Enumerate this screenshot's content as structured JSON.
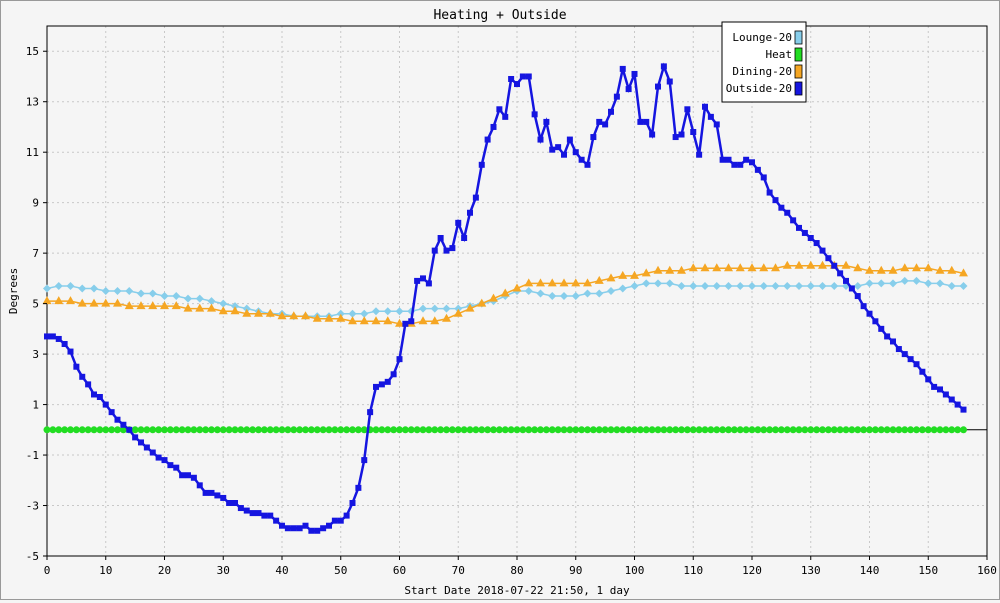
{
  "chart_data": {
    "type": "line",
    "title": "Heating + Outside",
    "xlabel": "Start Date 2018-07-22 21:50, 1 day",
    "ylabel": "Degrees",
    "xlim": [
      0,
      160
    ],
    "ylim": [
      -5,
      16
    ],
    "x_ticks": [
      0,
      10,
      20,
      30,
      40,
      50,
      60,
      70,
      80,
      90,
      100,
      110,
      120,
      130,
      140,
      150,
      160
    ],
    "y_ticks": [
      -5,
      -3,
      -1,
      1,
      3,
      5,
      7,
      9,
      11,
      13,
      15
    ],
    "grid": true,
    "legend_position": "top-right",
    "series": [
      {
        "name": "Lounge-20",
        "color": "#87ceeb",
        "marker": "diamond",
        "x": [
          0,
          2,
          4,
          6,
          8,
          10,
          12,
          14,
          16,
          18,
          20,
          22,
          24,
          26,
          28,
          30,
          32,
          34,
          36,
          38,
          40,
          42,
          44,
          46,
          48,
          50,
          52,
          54,
          56,
          58,
          60,
          62,
          64,
          66,
          68,
          70,
          72,
          74,
          76,
          78,
          80,
          82,
          84,
          86,
          88,
          90,
          92,
          94,
          96,
          98,
          100,
          102,
          104,
          106,
          108,
          110,
          112,
          114,
          116,
          118,
          120,
          122,
          124,
          126,
          128,
          130,
          132,
          134,
          136,
          138,
          140,
          142,
          144,
          146,
          148,
          150,
          152,
          154,
          156
        ],
        "values": [
          5.6,
          5.7,
          5.7,
          5.6,
          5.6,
          5.5,
          5.5,
          5.5,
          5.4,
          5.4,
          5.3,
          5.3,
          5.2,
          5.2,
          5.1,
          5.0,
          4.9,
          4.8,
          4.7,
          4.6,
          4.6,
          4.5,
          4.5,
          4.5,
          4.5,
          4.6,
          4.6,
          4.6,
          4.7,
          4.7,
          4.7,
          4.7,
          4.8,
          4.8,
          4.8,
          4.8,
          4.9,
          5.0,
          5.1,
          5.3,
          5.5,
          5.5,
          5.4,
          5.3,
          5.3,
          5.3,
          5.4,
          5.4,
          5.5,
          5.6,
          5.7,
          5.8,
          5.8,
          5.8,
          5.7,
          5.7,
          5.7,
          5.7,
          5.7,
          5.7,
          5.7,
          5.7,
          5.7,
          5.7,
          5.7,
          5.7,
          5.7,
          5.7,
          5.7,
          5.7,
          5.8,
          5.8,
          5.8,
          5.9,
          5.9,
          5.8,
          5.8,
          5.7,
          5.7
        ]
      },
      {
        "name": "Heat",
        "color": "#22dd22",
        "marker": "circle",
        "x": [
          0,
          156
        ],
        "values": [
          0,
          0
        ]
      },
      {
        "name": "Dining-20",
        "color": "#f5a623",
        "marker": "triangle",
        "x": [
          0,
          2,
          4,
          6,
          8,
          10,
          12,
          14,
          16,
          18,
          20,
          22,
          24,
          26,
          28,
          30,
          32,
          34,
          36,
          38,
          40,
          42,
          44,
          46,
          48,
          50,
          52,
          54,
          56,
          58,
          60,
          62,
          64,
          66,
          68,
          70,
          72,
          74,
          76,
          78,
          80,
          82,
          84,
          86,
          88,
          90,
          92,
          94,
          96,
          98,
          100,
          102,
          104,
          106,
          108,
          110,
          112,
          114,
          116,
          118,
          120,
          122,
          124,
          126,
          128,
          130,
          132,
          134,
          136,
          138,
          140,
          142,
          144,
          146,
          148,
          150,
          152,
          154,
          156
        ],
        "values": [
          5.1,
          5.1,
          5.1,
          5.0,
          5.0,
          5.0,
          5.0,
          4.9,
          4.9,
          4.9,
          4.9,
          4.9,
          4.8,
          4.8,
          4.8,
          4.7,
          4.7,
          4.6,
          4.6,
          4.6,
          4.5,
          4.5,
          4.5,
          4.4,
          4.4,
          4.4,
          4.3,
          4.3,
          4.3,
          4.3,
          4.2,
          4.2,
          4.3,
          4.3,
          4.4,
          4.6,
          4.8,
          5.0,
          5.2,
          5.4,
          5.6,
          5.8,
          5.8,
          5.8,
          5.8,
          5.8,
          5.8,
          5.9,
          6.0,
          6.1,
          6.1,
          6.2,
          6.3,
          6.3,
          6.3,
          6.4,
          6.4,
          6.4,
          6.4,
          6.4,
          6.4,
          6.4,
          6.4,
          6.5,
          6.5,
          6.5,
          6.5,
          6.5,
          6.5,
          6.4,
          6.3,
          6.3,
          6.3,
          6.4,
          6.4,
          6.4,
          6.3,
          6.3,
          6.2
        ]
      },
      {
        "name": "Outside-20",
        "color": "#1515e0",
        "marker": "square",
        "x": [
          0,
          1,
          2,
          3,
          4,
          5,
          6,
          7,
          8,
          9,
          10,
          11,
          12,
          13,
          14,
          15,
          16,
          17,
          18,
          19,
          20,
          21,
          22,
          23,
          24,
          25,
          26,
          27,
          28,
          29,
          30,
          31,
          32,
          33,
          34,
          35,
          36,
          37,
          38,
          39,
          40,
          41,
          42,
          43,
          44,
          45,
          46,
          47,
          48,
          49,
          50,
          51,
          52,
          53,
          54,
          55,
          56,
          57,
          58,
          59,
          60,
          61,
          62,
          63,
          64,
          65,
          66,
          67,
          68,
          69,
          70,
          71,
          72,
          73,
          74,
          75,
          76,
          77,
          78,
          79,
          80,
          81,
          82,
          83,
          84,
          85,
          86,
          87,
          88,
          89,
          90,
          91,
          92,
          93,
          94,
          95,
          96,
          97,
          98,
          99,
          100,
          101,
          102,
          103,
          104,
          105,
          106,
          107,
          108,
          109,
          110,
          111,
          112,
          113,
          114,
          115,
          116,
          117,
          118,
          119,
          120,
          121,
          122,
          123,
          124,
          125,
          126,
          127,
          128,
          129,
          130,
          131,
          132,
          133,
          134,
          135,
          136,
          137,
          138,
          139,
          140,
          141,
          142,
          143,
          144,
          145,
          146,
          147,
          148,
          149,
          150,
          151,
          152,
          153,
          154,
          155,
          156
        ],
        "values": [
          3.7,
          3.7,
          3.6,
          3.4,
          3.1,
          2.5,
          2.1,
          1.8,
          1.4,
          1.3,
          1.0,
          0.7,
          0.4,
          0.2,
          0.0,
          -0.3,
          -0.5,
          -0.7,
          -0.9,
          -1.1,
          -1.2,
          -1.4,
          -1.5,
          -1.8,
          -1.8,
          -1.9,
          -2.2,
          -2.5,
          -2.5,
          -2.6,
          -2.7,
          -2.9,
          -2.9,
          -3.1,
          -3.2,
          -3.3,
          -3.3,
          -3.4,
          -3.4,
          -3.6,
          -3.8,
          -3.9,
          -3.9,
          -3.9,
          -3.8,
          -4.0,
          -4.0,
          -3.9,
          -3.8,
          -3.6,
          -3.6,
          -3.4,
          -2.9,
          -2.3,
          -1.2,
          0.7,
          1.7,
          1.8,
          1.9,
          2.2,
          2.8,
          4.2,
          4.3,
          5.9,
          6.0,
          5.8,
          7.1,
          7.6,
          7.1,
          7.2,
          8.2,
          7.6,
          8.6,
          9.2,
          10.5,
          11.5,
          12.0,
          12.7,
          12.4,
          13.9,
          13.7,
          14.0,
          14.0,
          12.5,
          11.5,
          12.2,
          11.1,
          11.2,
          10.9,
          11.5,
          11.0,
          10.7,
          10.5,
          11.6,
          12.2,
          12.1,
          12.6,
          13.2,
          14.3,
          13.5,
          14.1,
          12.2,
          12.2,
          11.7,
          13.6,
          14.4,
          13.8,
          11.6,
          11.7,
          12.7,
          11.8,
          10.9,
          12.8,
          12.4,
          12.1,
          10.7,
          10.7,
          10.5,
          10.5,
          10.7,
          10.6,
          10.3,
          10.0,
          9.4,
          9.1,
          8.8,
          8.6,
          8.3,
          8.0,
          7.8,
          7.6,
          7.4,
          7.1,
          6.8,
          6.5,
          6.2,
          5.9,
          5.6,
          5.3,
          4.9,
          4.6,
          4.3,
          4.0,
          3.7,
          3.5,
          3.2,
          3.0,
          2.8,
          2.6,
          2.3,
          2.0,
          1.7,
          1.6,
          1.4,
          1.2,
          1.0,
          0.8
        ]
      }
    ]
  }
}
